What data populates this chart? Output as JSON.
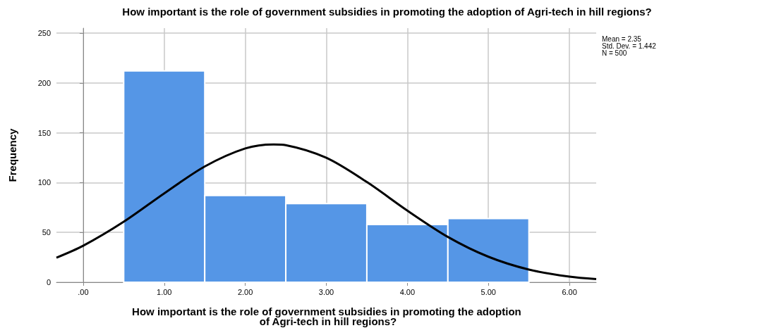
{
  "chart_data": {
    "type": "histogram",
    "title": "How important is the role of government subsidies in promoting the adoption of Agri-tech in hill regions?",
    "xlabel": "How important is the role of government subsidies in promoting the adoption of Agri-tech in hill regions?",
    "ylabel": "Frequency",
    "bins": [
      0.5,
      1.5,
      2.5,
      3.5,
      4.5,
      5.5
    ],
    "values": [
      212,
      87,
      79,
      58,
      64
    ],
    "color": "#5596e6",
    "series": [
      {
        "type": "line",
        "color": "#000000",
        "x": [
          -0.33,
          0,
          0.5,
          1,
          1.5,
          2,
          2.35,
          2.5,
          3,
          3.5,
          4,
          4.5,
          5,
          5.5,
          6,
          6.33
        ],
        "values": [
          24.6,
          36.6,
          60.7,
          89.2,
          116.2,
          134.3,
          138.3,
          137.6,
          124.9,
          100.6,
          71.9,
          45.5,
          25.6,
          12.7,
          5.6,
          3.1
        ]
      }
    ],
    "marker": "none",
    "line_style": "solid",
    "xlim": [
      -0.33,
      6.33
    ],
    "xticks": [
      {
        "value": 0,
        "label": ".00"
      },
      {
        "value": 1,
        "label": "1.00"
      },
      {
        "value": 2,
        "label": "2.00"
      },
      {
        "value": 3,
        "label": "3.00"
      },
      {
        "value": 4,
        "label": "4.00"
      },
      {
        "value": 5,
        "label": "5.00"
      },
      {
        "value": 6,
        "label": "6.00"
      }
    ],
    "ylim": [
      0,
      255
    ],
    "yticks": [
      0,
      50,
      100,
      150,
      200,
      250
    ],
    "grid": true,
    "annotations": [
      "Mean = 2.35",
      "Std. Dev. = 1.442",
      "N = 500"
    ]
  }
}
